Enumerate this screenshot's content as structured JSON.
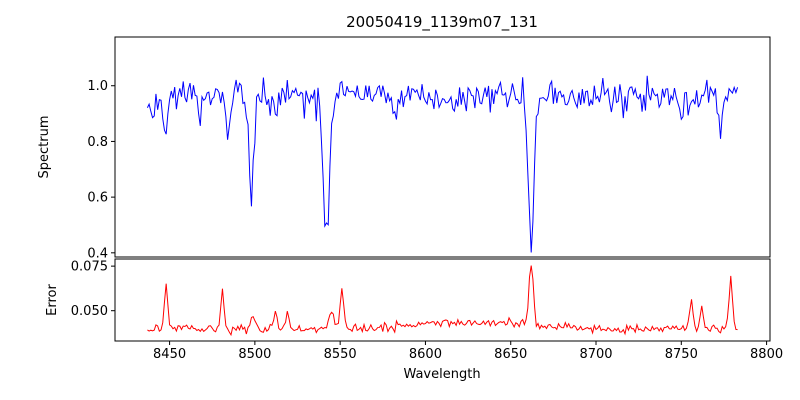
{
  "figure": {
    "title": "20050419_1139m07_131",
    "xlabel": "Wavelength",
    "top_ylabel": "Spectrum",
    "bottom_ylabel": "Error"
  },
  "chart_data": [
    {
      "type": "line",
      "name": "spectrum",
      "title": "20050419_1139m07_131",
      "xlabel": "Wavelength",
      "ylabel": "Spectrum",
      "color": "#0000ff",
      "line_color_name": "blue",
      "grid": false,
      "legend": false,
      "xlim": [
        8418,
        8802
      ],
      "ylim": [
        0.385,
        1.175
      ],
      "x_ticks": [
        "8450",
        "8500",
        "8550",
        "8600",
        "8650",
        "8700",
        "8750",
        "8800"
      ],
      "y_ticks": [
        "0.4",
        "0.6",
        "0.8",
        "1.0"
      ],
      "x_data_range": [
        8437,
        8783
      ],
      "continuum_level": 0.97,
      "noise_level": 0.03,
      "absorption_minima": [
        {
          "wavelength": 8498,
          "flux": 0.61
        },
        {
          "wavelength": 8542,
          "flux": 0.47
        },
        {
          "wavelength": 8662,
          "flux": 0.4
        }
      ],
      "series_spec": {
        "x_start": 8437,
        "x_end": 8783,
        "step": 1,
        "baseline": 0.968,
        "noise_sigma": 0.027,
        "extra_dip_prob": 0.05,
        "extra_dip_max": 0.1,
        "seed": 20050419,
        "features": [
          {
            "center": 8440,
            "amp": -0.1,
            "width": 1.2
          },
          {
            "center": 8448,
            "amp": -0.15,
            "width": 1.4
          },
          {
            "center": 8468,
            "amp": -0.11,
            "width": 1.3
          },
          {
            "center": 8484,
            "amp": -0.17,
            "width": 1.5
          },
          {
            "center": 8498,
            "amp": -0.36,
            "width": 2.0
          },
          {
            "center": 8512,
            "amp": -0.1,
            "width": 1.4
          },
          {
            "center": 8542,
            "amp": -0.5,
            "width": 2.6
          },
          {
            "center": 8582,
            "amp": -0.08,
            "width": 1.2
          },
          {
            "center": 8662,
            "amp": -0.575,
            "width": 2.3
          },
          {
            "center": 8688,
            "amp": -0.07,
            "width": 1.2
          },
          {
            "center": 8750,
            "amp": -0.09,
            "width": 1.2
          },
          {
            "center": 8773,
            "amp": -0.13,
            "width": 1.4
          }
        ]
      }
    },
    {
      "type": "line",
      "name": "error",
      "xlabel": "Wavelength",
      "ylabel": "Error",
      "color": "#ff0000",
      "line_color_name": "red",
      "grid": false,
      "legend": false,
      "xlim": [
        8418,
        8802
      ],
      "ylim": [
        0.033,
        0.079
      ],
      "x_ticks": [
        "8450",
        "8500",
        "8550",
        "8600",
        "8650",
        "8700",
        "8750",
        "8800"
      ],
      "y_ticks": [
        "0.050",
        "0.075"
      ],
      "x_data_range": [
        8437,
        8783
      ],
      "baseline_level": 0.04,
      "error_peaks": [
        {
          "wavelength": 8448,
          "error": 0.064
        },
        {
          "wavelength": 8481,
          "error": 0.062
        },
        {
          "wavelength": 8551,
          "error": 0.062
        },
        {
          "wavelength": 8662,
          "error": 0.075
        },
        {
          "wavelength": 8756,
          "error": 0.057
        },
        {
          "wavelength": 8779,
          "error": 0.07
        }
      ],
      "series_spec": {
        "x_start": 8437,
        "x_end": 8783,
        "step": 1,
        "baseline": 0.0398,
        "noise_sigma": 0.0012,
        "extra_dip_prob": 0,
        "extra_dip_max": 0,
        "seed": 1139,
        "features": [
          {
            "center": 8448,
            "amp": 0.024,
            "width": 1.3
          },
          {
            "center": 8481,
            "amp": 0.022,
            "width": 1.3
          },
          {
            "center": 8499,
            "amp": 0.008,
            "width": 1.8
          },
          {
            "center": 8512,
            "amp": 0.01,
            "width": 1.6
          },
          {
            "center": 8519,
            "amp": 0.009,
            "width": 1.4
          },
          {
            "center": 8545,
            "amp": 0.01,
            "width": 2.2
          },
          {
            "center": 8551,
            "amp": 0.022,
            "width": 1.5
          },
          {
            "center": 8600,
            "amp": 0.002,
            "width": 25
          },
          {
            "center": 8640,
            "amp": 0.003,
            "width": 38
          },
          {
            "center": 8662,
            "amp": 0.034,
            "width": 1.8
          },
          {
            "center": 8756,
            "amp": 0.017,
            "width": 1.4
          },
          {
            "center": 8762,
            "amp": 0.012,
            "width": 1.2
          },
          {
            "center": 8779,
            "amp": 0.03,
            "width": 1.4
          }
        ]
      }
    }
  ]
}
